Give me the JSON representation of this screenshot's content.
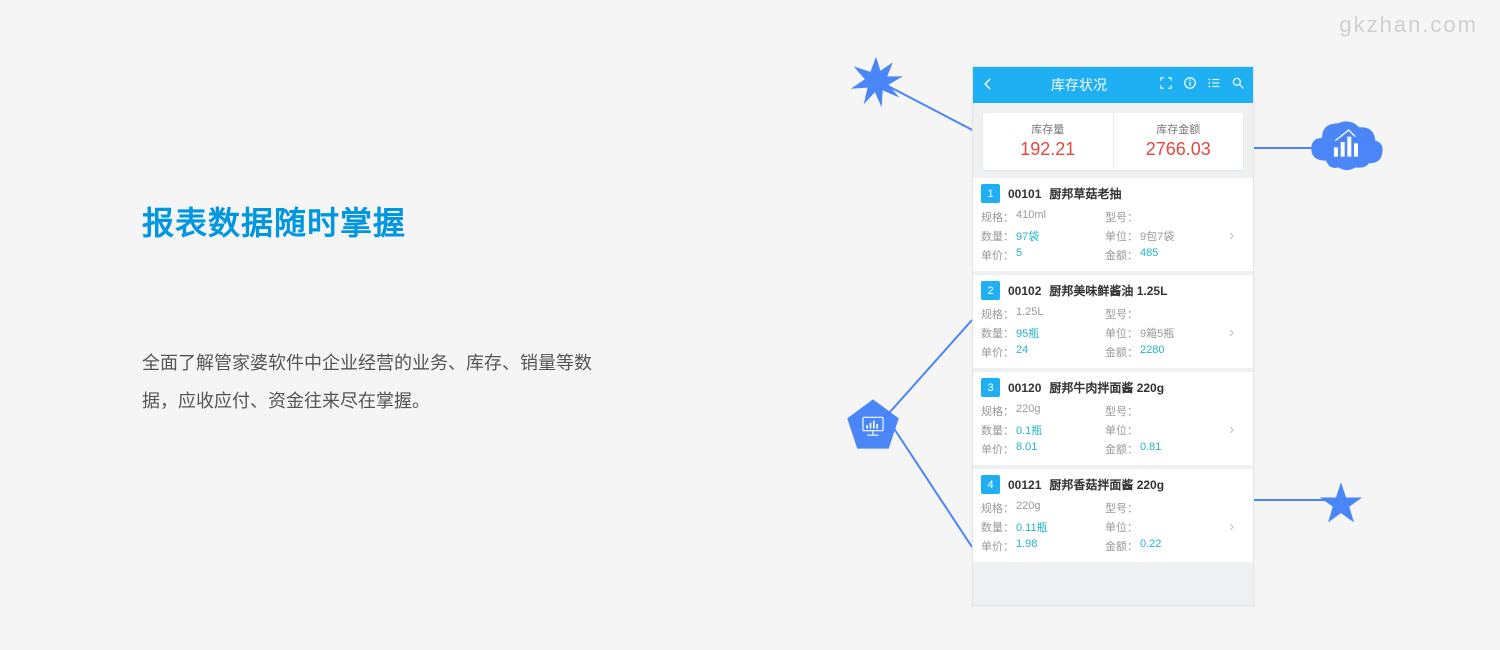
{
  "watermark": "gkzhan.com",
  "colors": {
    "bg": "#f5f5f5",
    "accent": "#1fb0f3",
    "titleBlue": "#0096e0",
    "summaryRed": "#e04a3f",
    "valueTeal": "#22b6c6",
    "iconBlue": "#4a86f7"
  },
  "textPanel": {
    "title": "报表数据随时掌握",
    "description": "全面了解管家婆软件中企业经营的业务、库存、销量等数据，应收应付、资金往来尽在掌握。"
  },
  "app": {
    "headerTitle": "库存状况",
    "summary": [
      {
        "label": "库存量",
        "value": "192.21"
      },
      {
        "label": "库存金额",
        "value": "2766.03"
      }
    ],
    "fields": {
      "spec": "规格：",
      "model": "型号：",
      "qty": "数量：",
      "unit": "单位：",
      "price": "单价：",
      "amount": "金额："
    },
    "items": [
      {
        "idx": "1",
        "code": "00101",
        "name": "厨邦草菇老抽",
        "spec": "410ml",
        "model": "",
        "qty": "97袋",
        "unit": "9包7袋",
        "price": "5",
        "amount": "485"
      },
      {
        "idx": "2",
        "code": "00102",
        "name": "厨邦美味鲜酱油 1.25L",
        "spec": "1.25L",
        "model": "",
        "qty": "95瓶",
        "unit": "9箱5瓶",
        "price": "24",
        "amount": "2280"
      },
      {
        "idx": "3",
        "code": "00120",
        "name": "厨邦牛肉拌面酱 220g",
        "spec": "220g",
        "model": "",
        "qty": "0.1瓶",
        "unit": "",
        "price": "8.01",
        "amount": "0.81"
      },
      {
        "idx": "4",
        "code": "00121",
        "name": "厨邦香菇拌面酱 220g",
        "spec": "220g",
        "model": "",
        "qty": "0.11瓶",
        "unit": "",
        "price": "1.98",
        "amount": "0.22"
      }
    ]
  }
}
